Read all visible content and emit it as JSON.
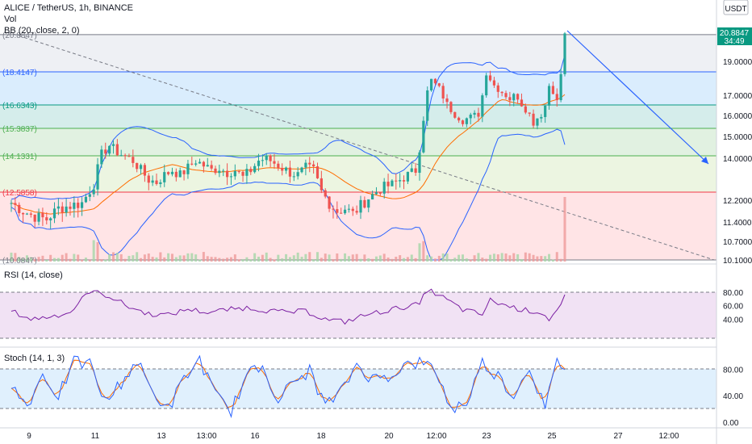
{
  "header": {
    "symbol_title": "ALICE / TetherUS, 1h, BINANCE",
    "vol_label": "Vol",
    "bb_label": "BB (20, close, 2, 0)",
    "rsi_label": "RSI (14, close)",
    "stoch_label": "Stoch (14, 1, 3)"
  },
  "currency_badge": {
    "line1": "",
    "line2": "USDT"
  },
  "price_panel": {
    "price_axis": [
      "19.0000",
      "17.0000",
      "16.0000",
      "15.0000",
      "14.0000",
      "12.2000",
      "11.4000",
      "10.7000",
      "10.1000"
    ],
    "fib_levels": [
      {
        "value": 20.8847,
        "label": "(20.8847)",
        "color": "#787b86"
      },
      {
        "value": 18.4147,
        "label": "(18.4147)",
        "color": "#2962ff"
      },
      {
        "value": 16.6343,
        "label": "(16.6343)",
        "color": "#089981"
      },
      {
        "value": 15.3837,
        "label": "(15.3837)",
        "color": "#4caf50"
      },
      {
        "value": 14.1331,
        "label": "(14.1331)",
        "color": "#4caf50"
      },
      {
        "value": 12.5858,
        "label": "(12.5858)",
        "color": "#f23645"
      },
      {
        "value": 10.0847,
        "label": "(10.0847)",
        "color": "#787b86"
      }
    ],
    "last_price": {
      "value": "20.8847",
      "countdown": "34:49",
      "color": "#089981"
    }
  },
  "rsi_panel": {
    "axis": [
      "80.00",
      "60.00",
      "40.00"
    ],
    "upper": 70,
    "lower": 30,
    "color": "#7b1fa2"
  },
  "stoch_panel": {
    "axis": [
      "80.00",
      "40.00",
      "0.00"
    ],
    "upper": 80,
    "lower": 20,
    "k_color": "#2962ff",
    "d_color": "#ff6d00"
  },
  "time_axis": [
    "9",
    "11",
    "13",
    "13:00",
    "16",
    "18",
    "20",
    "12:00",
    "23",
    "25",
    "27",
    "12:00"
  ],
  "colors": {
    "up": "#26a69a",
    "down": "#ef5350",
    "bb": "#2962ff",
    "basis": "#ff6d00"
  },
  "chart_data": {
    "type": "candlestick",
    "price_path": [
      [
        0,
        12.1
      ],
      [
        3,
        11.8
      ],
      [
        6,
        11.6
      ],
      [
        9,
        11.5
      ],
      [
        12,
        11.9
      ],
      [
        15,
        12.0
      ],
      [
        18,
        12.1
      ],
      [
        21,
        12.9
      ],
      [
        23,
        14.2
      ],
      [
        25,
        14.6
      ],
      [
        27,
        14.3
      ],
      [
        29,
        14.1
      ],
      [
        31,
        13.9
      ],
      [
        33,
        13.5
      ],
      [
        35,
        13.1
      ],
      [
        37,
        13.0
      ],
      [
        39,
        13.3
      ],
      [
        41,
        13.5
      ],
      [
        43,
        13.3
      ],
      [
        45,
        13.6
      ],
      [
        47,
        13.9
      ],
      [
        49,
        13.7
      ],
      [
        51,
        13.5
      ],
      [
        53,
        13.6
      ],
      [
        55,
        13.4
      ],
      [
        57,
        13.5
      ],
      [
        59,
        13.2
      ],
      [
        61,
        13.5
      ],
      [
        63,
        13.9
      ],
      [
        65,
        14.0
      ],
      [
        67,
        13.8
      ],
      [
        69,
        13.6
      ],
      [
        71,
        13.4
      ],
      [
        73,
        13.3
      ],
      [
        75,
        13.6
      ],
      [
        77,
        13.5
      ],
      [
        79,
        12.6
      ],
      [
        81,
        12.1
      ],
      [
        83,
        11.8
      ],
      [
        85,
        11.9
      ],
      [
        87,
        11.7
      ],
      [
        89,
        12.0
      ],
      [
        91,
        12.3
      ],
      [
        93,
        12.6
      ],
      [
        95,
        12.8
      ],
      [
        97,
        12.9
      ],
      [
        99,
        13.1
      ],
      [
        101,
        13.3
      ],
      [
        103,
        13.5
      ],
      [
        104,
        14.5
      ],
      [
        105,
        15.9
      ],
      [
        106,
        17.2
      ],
      [
        107,
        17.9
      ],
      [
        109,
        17.4
      ],
      [
        111,
        16.6
      ],
      [
        113,
        16.1
      ],
      [
        115,
        15.8
      ],
      [
        117,
        15.9
      ],
      [
        119,
        16.1
      ],
      [
        120,
        17.0
      ],
      [
        121,
        18.4
      ],
      [
        123,
        17.6
      ],
      [
        125,
        17.2
      ],
      [
        127,
        16.9
      ],
      [
        129,
        17.0
      ],
      [
        131,
        16.4
      ],
      [
        133,
        15.7
      ],
      [
        135,
        16.1
      ],
      [
        136,
        16.6
      ],
      [
        137,
        17.6
      ],
      [
        138,
        17.3
      ],
      [
        139,
        16.7
      ],
      [
        140,
        18.3
      ],
      [
        141,
        20.88
      ]
    ],
    "rsi_path": [
      [
        0,
        52
      ],
      [
        5,
        40
      ],
      [
        10,
        44
      ],
      [
        15,
        50
      ],
      [
        20,
        82
      ],
      [
        25,
        74
      ],
      [
        30,
        58
      ],
      [
        35,
        48
      ],
      [
        40,
        46
      ],
      [
        45,
        55
      ],
      [
        50,
        50
      ],
      [
        55,
        54
      ],
      [
        60,
        57
      ],
      [
        65,
        53
      ],
      [
        70,
        50
      ],
      [
        75,
        52
      ],
      [
        80,
        40
      ],
      [
        85,
        36
      ],
      [
        90,
        46
      ],
      [
        95,
        52
      ],
      [
        100,
        58
      ],
      [
        104,
        62
      ],
      [
        106,
        84
      ],
      [
        110,
        72
      ],
      [
        115,
        54
      ],
      [
        120,
        47
      ],
      [
        122,
        68
      ],
      [
        125,
        62
      ],
      [
        130,
        54
      ],
      [
        135,
        50
      ],
      [
        137,
        40
      ],
      [
        139,
        52
      ],
      [
        140,
        58
      ],
      [
        141,
        75
      ]
    ],
    "stoch_path": [
      [
        0,
        55
      ],
      [
        4,
        25
      ],
      [
        8,
        72
      ],
      [
        12,
        40
      ],
      [
        16,
        90
      ],
      [
        20,
        88
      ],
      [
        24,
        30
      ],
      [
        28,
        60
      ],
      [
        32,
        92
      ],
      [
        36,
        45
      ],
      [
        40,
        20
      ],
      [
        44,
        65
      ],
      [
        48,
        95
      ],
      [
        52,
        40
      ],
      [
        56,
        18
      ],
      [
        60,
        70
      ],
      [
        64,
        85
      ],
      [
        68,
        35
      ],
      [
        72,
        60
      ],
      [
        76,
        78
      ],
      [
        80,
        25
      ],
      [
        84,
        45
      ],
      [
        88,
        88
      ],
      [
        92,
        65
      ],
      [
        96,
        70
      ],
      [
        100,
        85
      ],
      [
        104,
        90
      ],
      [
        108,
        80
      ],
      [
        112,
        20
      ],
      [
        116,
        30
      ],
      [
        120,
        90
      ],
      [
        124,
        70
      ],
      [
        128,
        40
      ],
      [
        132,
        85
      ],
      [
        136,
        20
      ],
      [
        139,
        90
      ],
      [
        141,
        85
      ]
    ]
  }
}
